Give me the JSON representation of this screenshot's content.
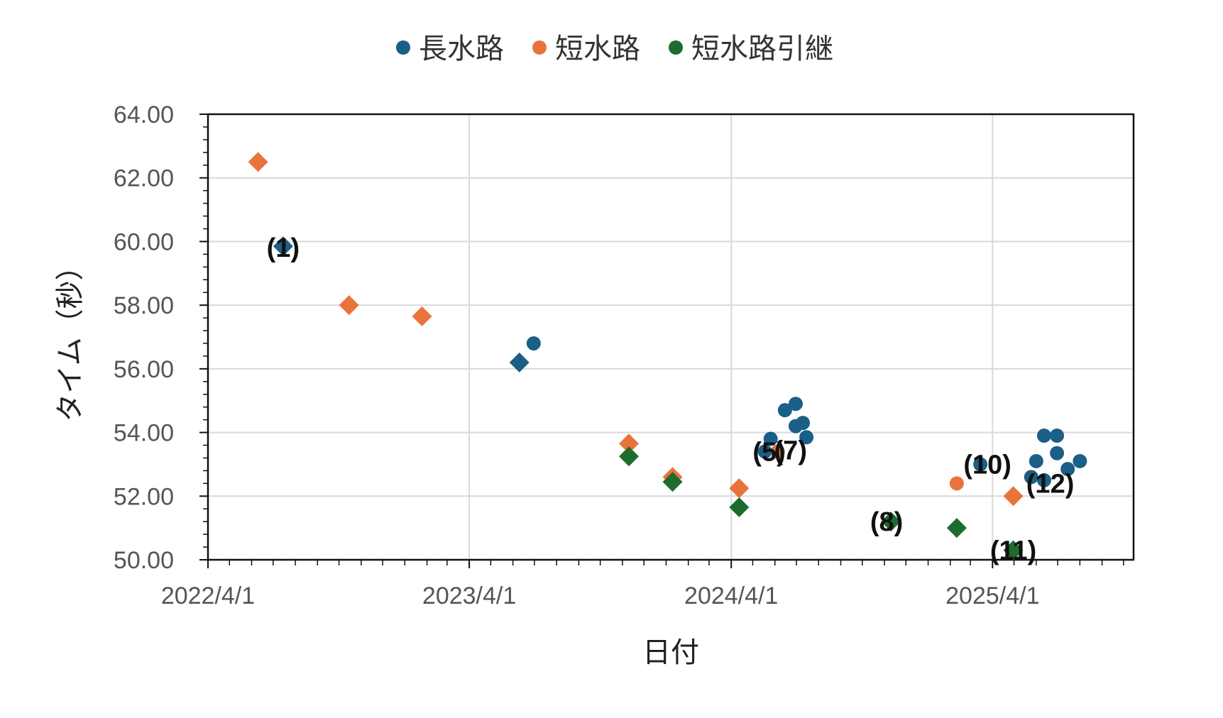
{
  "chart_data": {
    "type": "scatter",
    "xlabel": "日付",
    "ylabel": "タイム（秒）",
    "ylim": [
      50.0,
      64.0
    ],
    "yticks": [
      "50.00",
      "52.00",
      "54.00",
      "56.00",
      "58.00",
      "60.00",
      "62.00",
      "64.00"
    ],
    "xlim": [
      "2022-04-01",
      "2025-10-15"
    ],
    "xticks": [
      {
        "date": "2022-04-01",
        "label": "2022/4/1"
      },
      {
        "date": "2023-04-01",
        "label": "2023/4/1"
      },
      {
        "date": "2024-04-01",
        "label": "2024/4/1"
      },
      {
        "date": "2025-04-01",
        "label": "2025/4/1"
      }
    ],
    "grid": true,
    "legend_position": "top",
    "series": [
      {
        "name": "長水路",
        "color": "#1a5f87",
        "points": [
          {
            "x": "2022-07-15",
            "y": 59.85,
            "marker": "diamond",
            "label": "(1)"
          },
          {
            "x": "2023-06-10",
            "y": 56.2,
            "marker": "diamond"
          },
          {
            "x": "2023-06-30",
            "y": 56.8,
            "marker": "circle"
          },
          {
            "x": "2024-05-18",
            "y": 53.4,
            "marker": "circle",
            "label": "(5)"
          },
          {
            "x": "2024-05-26",
            "y": 53.8,
            "marker": "circle"
          },
          {
            "x": "2024-06-15",
            "y": 54.7,
            "marker": "circle"
          },
          {
            "x": "2024-06-30",
            "y": 54.9,
            "marker": "circle"
          },
          {
            "x": "2024-06-30",
            "y": 54.2,
            "marker": "circle"
          },
          {
            "x": "2024-07-10",
            "y": 54.3,
            "marker": "circle"
          },
          {
            "x": "2024-07-15",
            "y": 53.85,
            "marker": "circle"
          },
          {
            "x": "2025-03-15",
            "y": 53.0,
            "marker": "circle",
            "label": "(10)"
          },
          {
            "x": "2025-05-25",
            "y": 52.6,
            "marker": "circle"
          },
          {
            "x": "2025-06-01",
            "y": 53.1,
            "marker": "circle"
          },
          {
            "x": "2025-06-12",
            "y": 53.9,
            "marker": "circle"
          },
          {
            "x": "2025-06-12",
            "y": 52.5,
            "marker": "circle"
          },
          {
            "x": "2025-06-30",
            "y": 53.9,
            "marker": "circle"
          },
          {
            "x": "2025-06-30",
            "y": 53.35,
            "marker": "circle"
          },
          {
            "x": "2025-07-15",
            "y": 52.85,
            "marker": "circle"
          },
          {
            "x": "2025-08-01",
            "y": 53.1,
            "marker": "circle"
          }
        ]
      },
      {
        "name": "短水路",
        "color": "#e8743b",
        "points": [
          {
            "x": "2022-06-10",
            "y": 62.5,
            "marker": "diamond"
          },
          {
            "x": "2022-10-15",
            "y": 58.0,
            "marker": "diamond"
          },
          {
            "x": "2023-01-25",
            "y": 57.65,
            "marker": "diamond"
          },
          {
            "x": "2023-11-10",
            "y": 53.65,
            "marker": "diamond"
          },
          {
            "x": "2024-01-10",
            "y": 52.6,
            "marker": "diamond"
          },
          {
            "x": "2024-04-12",
            "y": 52.25,
            "marker": "diamond"
          },
          {
            "x": "2024-06-05",
            "y": 53.4,
            "marker": "circle",
            "label": "(7)"
          },
          {
            "x": "2025-02-10",
            "y": 52.4,
            "marker": "circle"
          },
          {
            "x": "2025-04-30",
            "y": 52.0,
            "marker": "diamond",
            "label": "(12)"
          }
        ]
      },
      {
        "name": "短水路引継",
        "color": "#1e6b2e",
        "points": [
          {
            "x": "2023-11-10",
            "y": 53.25,
            "marker": "diamond"
          },
          {
            "x": "2024-01-10",
            "y": 52.45,
            "marker": "diamond"
          },
          {
            "x": "2024-04-12",
            "y": 51.65,
            "marker": "diamond"
          },
          {
            "x": "2024-11-10",
            "y": 51.2,
            "marker": "diamond",
            "label": "(8)"
          },
          {
            "x": "2025-02-10",
            "y": 51.0,
            "marker": "diamond"
          },
          {
            "x": "2025-04-30",
            "y": 50.3,
            "marker": "diamond",
            "label": "(11)"
          }
        ]
      }
    ]
  }
}
